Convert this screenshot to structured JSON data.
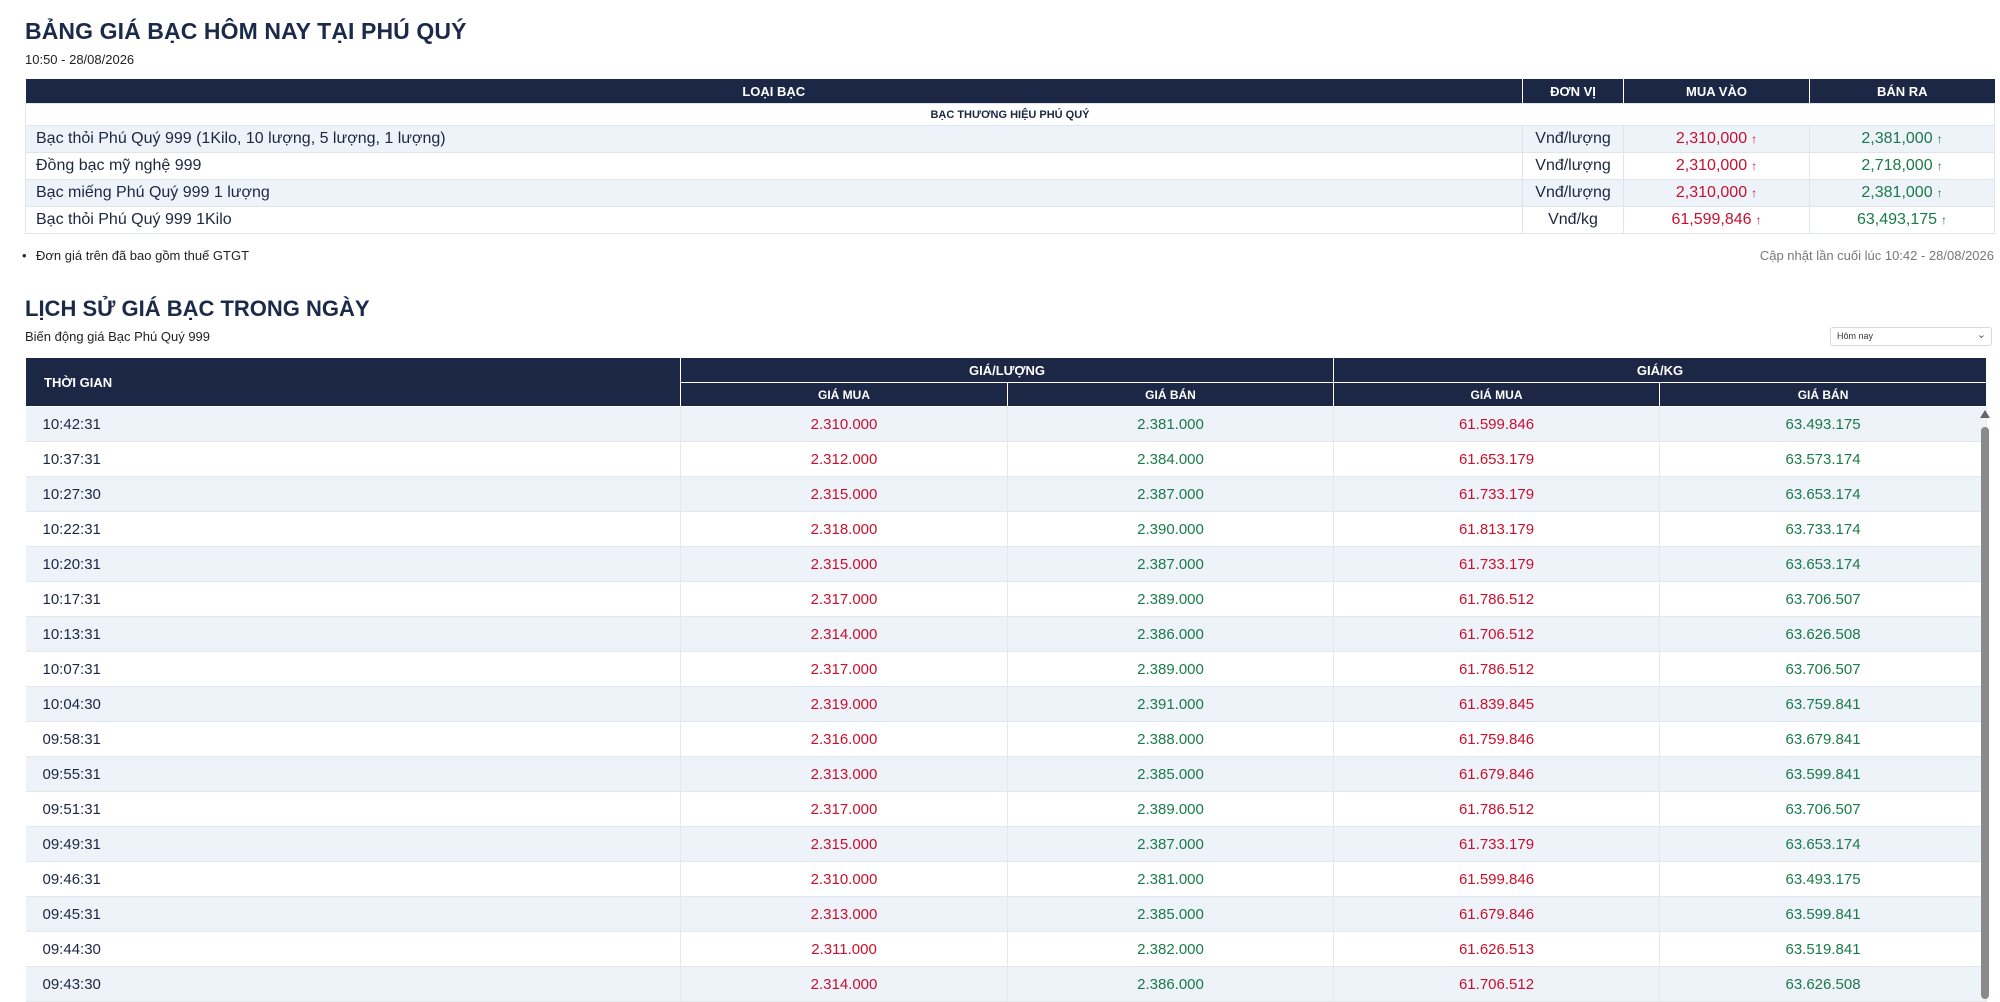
{
  "header": {
    "title": "BẢNG GIÁ BẠC HÔM NAY TẠI PHÚ QUÝ",
    "timestamp": "10:50 - 28/08/2026"
  },
  "price_table": {
    "headers": [
      "LOẠI BẠC",
      "ĐƠN VỊ",
      "MUA VÀO",
      "BÁN RA"
    ],
    "group_label": "BẠC THƯƠNG HIỆU PHÚ QUÝ",
    "rows": [
      {
        "name": "Bạc thỏi Phú Quý 999 (1Kilo, 10 lượng, 5 lượng, 1 lượng)",
        "unit": "Vnđ/lượng",
        "buy": "2,310,000",
        "sell": "2,381,000"
      },
      {
        "name": "Đồng bạc mỹ nghệ 999",
        "unit": "Vnđ/lượng",
        "buy": "2,310,000",
        "sell": "2,718,000"
      },
      {
        "name": "Bạc miếng Phú Quý 999 1 lượng",
        "unit": "Vnđ/lượng",
        "buy": "2,310,000",
        "sell": "2,381,000"
      },
      {
        "name": "Bạc thỏi Phú Quý 999 1Kilo",
        "unit": "Vnđ/kg",
        "buy": "61,599,846",
        "sell": "63,493,175"
      }
    ],
    "arrow": "↑"
  },
  "notes": {
    "vat_note": "Đơn giá trên đã bao gồm thuế GTGT",
    "last_updated": "Cập nhật lần cuối lúc 10:42 - 28/08/2026"
  },
  "history": {
    "title": "LỊCH SỬ GIÁ BẠC TRONG NGÀY",
    "subtitle": "Biến động giá Bạc Phú Quý 999",
    "period_select": "Hôm nay",
    "headers": {
      "time": "THỜI GIAN",
      "per_luong": "GIÁ/LƯỢNG",
      "per_kg": "GIÁ/KG",
      "buy": "GIÁ MUA",
      "sell": "GIÁ BÁN"
    },
    "rows": [
      {
        "time": "10:42:31",
        "luong_buy": "2.310.000",
        "luong_sell": "2.381.000",
        "kg_buy": "61.599.846",
        "kg_sell": "63.493.175"
      },
      {
        "time": "10:37:31",
        "luong_buy": "2.312.000",
        "luong_sell": "2.384.000",
        "kg_buy": "61.653.179",
        "kg_sell": "63.573.174"
      },
      {
        "time": "10:27:30",
        "luong_buy": "2.315.000",
        "luong_sell": "2.387.000",
        "kg_buy": "61.733.179",
        "kg_sell": "63.653.174"
      },
      {
        "time": "10:22:31",
        "luong_buy": "2.318.000",
        "luong_sell": "2.390.000",
        "kg_buy": "61.813.179",
        "kg_sell": "63.733.174"
      },
      {
        "time": "10:20:31",
        "luong_buy": "2.315.000",
        "luong_sell": "2.387.000",
        "kg_buy": "61.733.179",
        "kg_sell": "63.653.174"
      },
      {
        "time": "10:17:31",
        "luong_buy": "2.317.000",
        "luong_sell": "2.389.000",
        "kg_buy": "61.786.512",
        "kg_sell": "63.706.507"
      },
      {
        "time": "10:13:31",
        "luong_buy": "2.314.000",
        "luong_sell": "2.386.000",
        "kg_buy": "61.706.512",
        "kg_sell": "63.626.508"
      },
      {
        "time": "10:07:31",
        "luong_buy": "2.317.000",
        "luong_sell": "2.389.000",
        "kg_buy": "61.786.512",
        "kg_sell": "63.706.507"
      },
      {
        "time": "10:04:30",
        "luong_buy": "2.319.000",
        "luong_sell": "2.391.000",
        "kg_buy": "61.839.845",
        "kg_sell": "63.759.841"
      },
      {
        "time": "09:58:31",
        "luong_buy": "2.316.000",
        "luong_sell": "2.388.000",
        "kg_buy": "61.759.846",
        "kg_sell": "63.679.841"
      },
      {
        "time": "09:55:31",
        "luong_buy": "2.313.000",
        "luong_sell": "2.385.000",
        "kg_buy": "61.679.846",
        "kg_sell": "63.599.841"
      },
      {
        "time": "09:51:31",
        "luong_buy": "2.317.000",
        "luong_sell": "2.389.000",
        "kg_buy": "61.786.512",
        "kg_sell": "63.706.507"
      },
      {
        "time": "09:49:31",
        "luong_buy": "2.315.000",
        "luong_sell": "2.387.000",
        "kg_buy": "61.733.179",
        "kg_sell": "63.653.174"
      },
      {
        "time": "09:46:31",
        "luong_buy": "2.310.000",
        "luong_sell": "2.381.000",
        "kg_buy": "61.599.846",
        "kg_sell": "63.493.175"
      },
      {
        "time": "09:45:31",
        "luong_buy": "2.313.000",
        "luong_sell": "2.385.000",
        "kg_buy": "61.679.846",
        "kg_sell": "63.599.841"
      },
      {
        "time": "09:44:30",
        "luong_buy": "2.311.000",
        "luong_sell": "2.382.000",
        "kg_buy": "61.626.513",
        "kg_sell": "63.519.841"
      },
      {
        "time": "09:43:30",
        "luong_buy": "2.314.000",
        "luong_sell": "2.386.000",
        "kg_buy": "61.706.512",
        "kg_sell": "63.626.508"
      }
    ]
  },
  "colors": {
    "header_bg": "#1c2745",
    "buy": "#c8102e",
    "sell": "#1a7a4a",
    "row_alt": "#eef2f9"
  }
}
